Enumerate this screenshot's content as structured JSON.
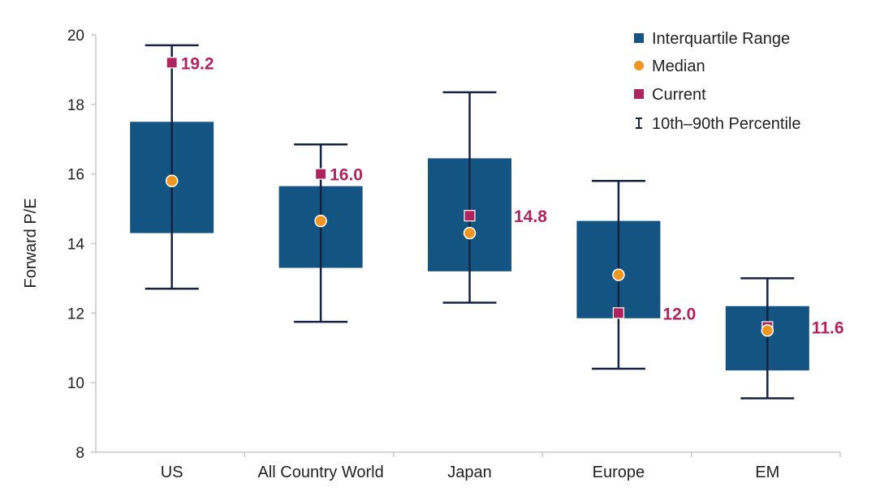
{
  "chart_data": {
    "type": "boxplot",
    "title": "",
    "xlabel": "",
    "ylabel": "Forward P/E",
    "ylim": [
      8,
      20
    ],
    "yticks": [
      8,
      10,
      12,
      14,
      16,
      18,
      20
    ],
    "grid": false,
    "legend_placement": "top-right",
    "legend": [
      {
        "label": "Interquartile Range",
        "marker": "square",
        "color": "#135483"
      },
      {
        "label": "Median",
        "marker": "circle",
        "color": "#f0951f"
      },
      {
        "label": "Current",
        "marker": "square",
        "color": "#b0235d"
      },
      {
        "label": "10th–90th Percentile",
        "marker": "whisker",
        "color": "#14233f"
      }
    ],
    "categories": [
      "US",
      "All Country World",
      "Japan",
      "Europe",
      "EM"
    ],
    "series": [
      {
        "category": "US",
        "p10": 12.7,
        "q1": 14.3,
        "median": 15.8,
        "q3": 17.5,
        "p90": 19.7,
        "current": 19.2,
        "current_label": "19.2"
      },
      {
        "category": "All Country World",
        "p10": 11.75,
        "q1": 13.3,
        "median": 14.65,
        "q3": 15.65,
        "p90": 16.85,
        "current": 16.0,
        "current_label": "16.0"
      },
      {
        "category": "Japan",
        "p10": 12.3,
        "q1": 13.2,
        "median": 14.3,
        "q3": 16.45,
        "p90": 18.35,
        "current": 14.8,
        "current_label": "14.8"
      },
      {
        "category": "Europe",
        "p10": 10.4,
        "q1": 11.85,
        "median": 13.1,
        "q3": 14.65,
        "p90": 15.8,
        "current": 12.0,
        "current_label": "12.0"
      },
      {
        "category": "EM",
        "p10": 9.55,
        "q1": 10.35,
        "median": 11.5,
        "q3": 12.2,
        "p90": 13.0,
        "current": 11.6,
        "current_label": "11.6"
      }
    ],
    "colors": {
      "box": "#135483",
      "median": "#f0951f",
      "current": "#b0235d",
      "whisker": "#14233f",
      "axis": "#c8c8c8"
    }
  }
}
